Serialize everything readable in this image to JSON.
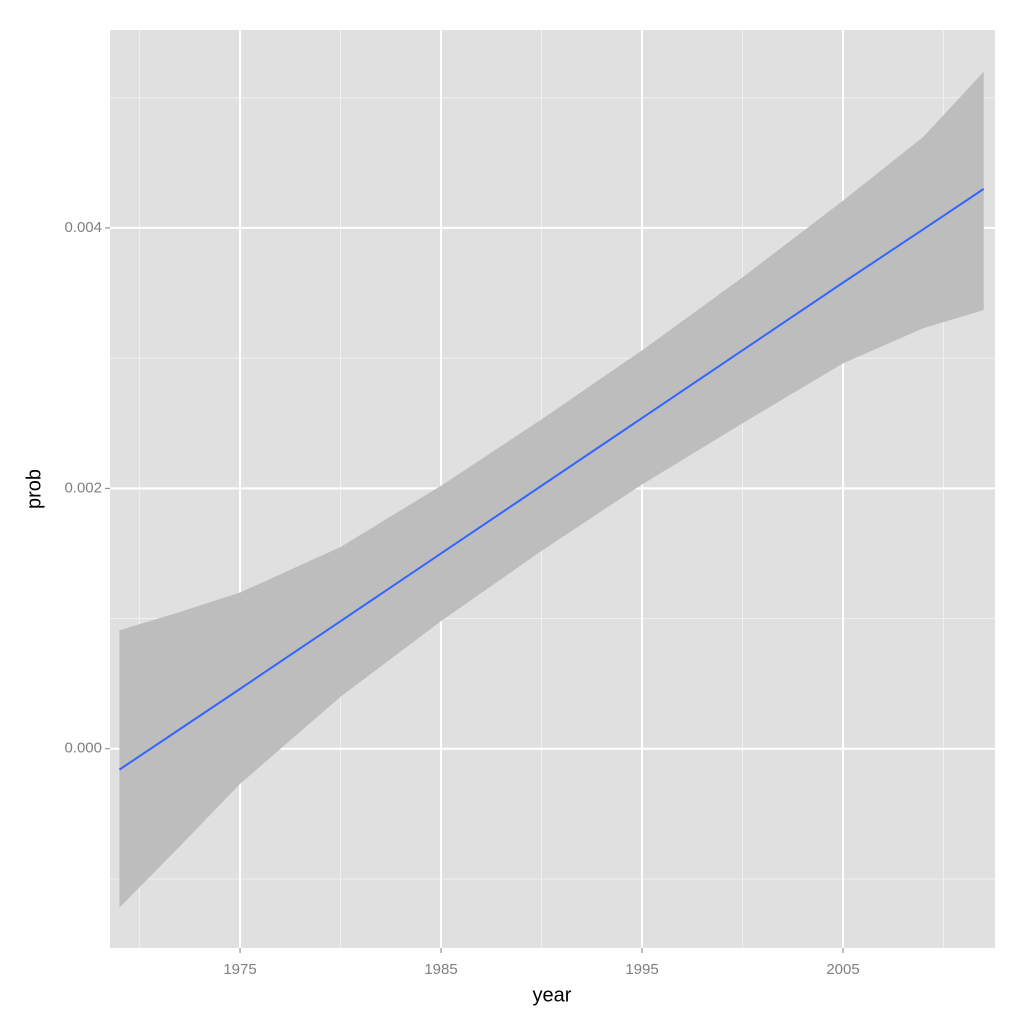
{
  "chart_data": {
    "type": "line",
    "x_label": "year",
    "y_label": "prob",
    "x": [
      1969,
      1972,
      1975,
      1980,
      1985,
      1990,
      1995,
      2000,
      2005,
      2009,
      2012
    ],
    "fit": {
      "color": "#3366ff",
      "values": [
        -0.00016,
        0.00015,
        0.00046,
        0.00098,
        0.0015,
        0.00202,
        0.00254,
        0.00306,
        0.00358,
        0.00399,
        0.0043
      ]
    },
    "band": {
      "color": "#bdbdbd",
      "lower": [
        -0.00122,
        -0.00075,
        -0.00027,
        0.0004,
        0.00098,
        0.00152,
        0.00203,
        0.0025,
        0.00296,
        0.00323,
        0.00337
      ],
      "upper": [
        0.00091,
        0.00105,
        0.0012,
        0.00155,
        0.00202,
        0.00253,
        0.00306,
        0.00362,
        0.00421,
        0.0047,
        0.0052
      ]
    },
    "xlim": [
      1968.53,
      2012.56
    ],
    "ylim": [
      -0.00153,
      0.00552
    ],
    "xticks": [
      1975,
      1985,
      1995,
      2005
    ],
    "yticks": [
      {
        "value": 0,
        "label": "0.000"
      },
      0.002,
      0.004
    ],
    "x_minor_ticks": [
      1970,
      1980,
      1990,
      2000,
      2010
    ],
    "y_minor_ticks": [
      -0.001,
      0.001,
      0.003,
      0.005
    ],
    "grid": true,
    "panel_color": "#e0e0e0"
  }
}
